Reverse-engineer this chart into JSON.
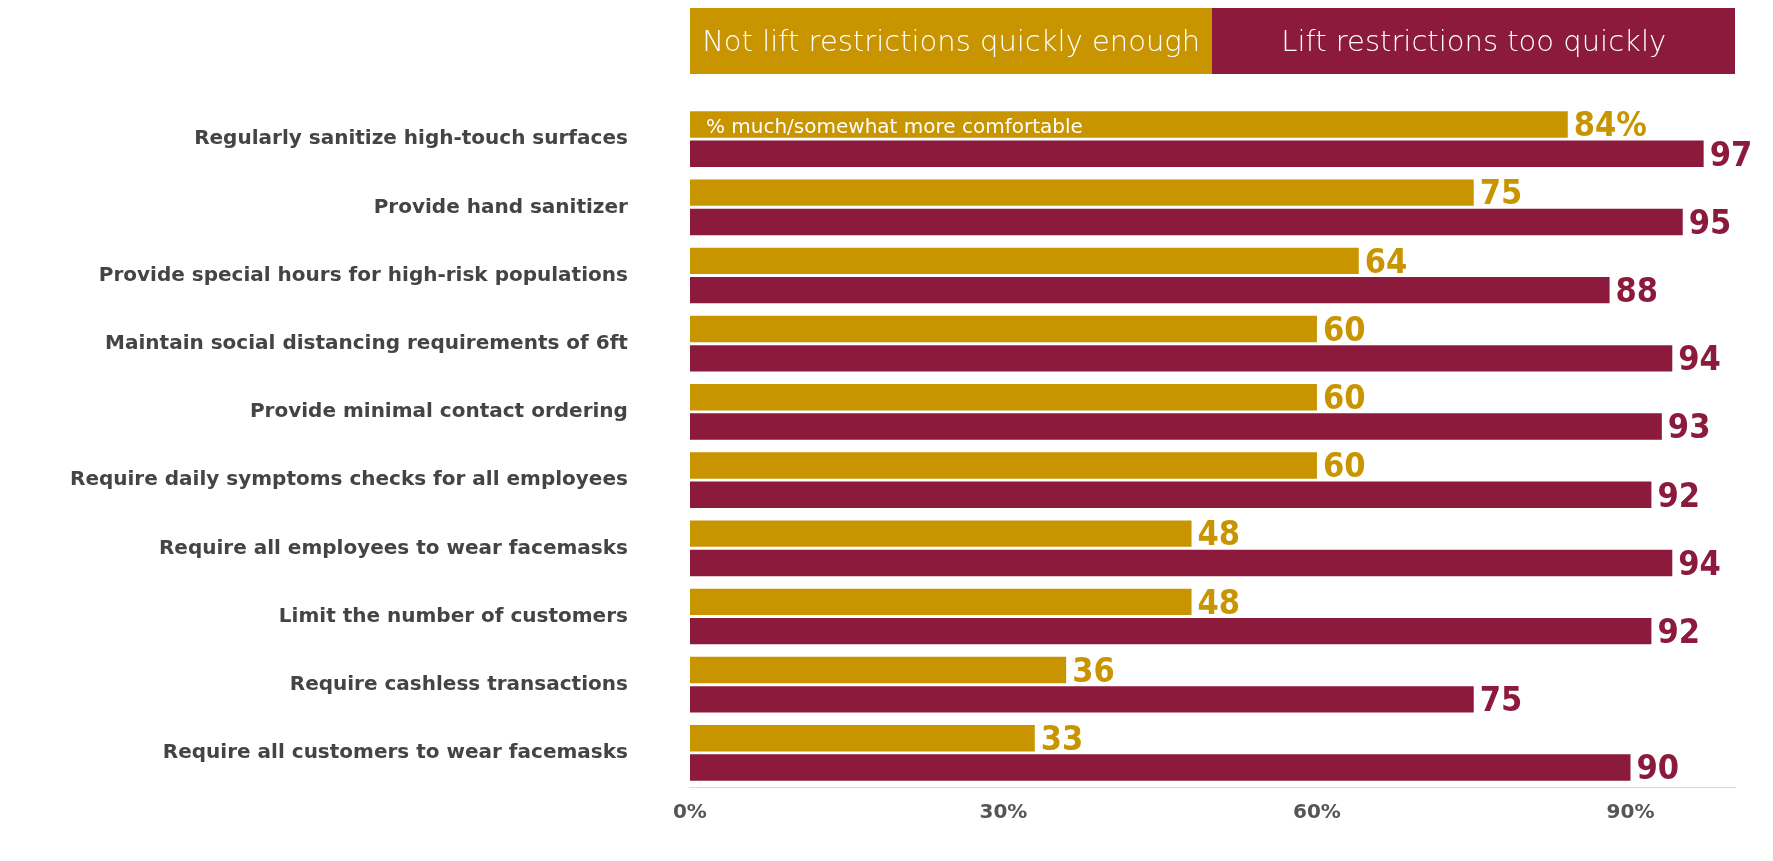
{
  "chart_data": {
    "type": "bar",
    "orientation": "horizontal",
    "legend": "top",
    "categories": [
      "Regularly sanitize high-touch surfaces",
      "Provide hand sanitizer",
      "Provide special hours for high-risk populations",
      "Maintain social distancing requirements of 6ft",
      "Provide minimal contact ordering",
      "Require daily symptoms checks for all employees",
      "Require all employees to wear facemasks",
      "Limit the number of customers",
      "Require cashless transactions",
      "Require all customers to wear facemasks"
    ],
    "series": [
      {
        "name": "Not lift restrictions quickly enough",
        "color": "#c89400",
        "values": [
          84,
          75,
          64,
          60,
          60,
          60,
          48,
          48,
          36,
          33
        ],
        "value_labels": [
          "84%",
          "75",
          "64",
          "60",
          "60",
          "60",
          "48",
          "48",
          "36",
          "33"
        ]
      },
      {
        "name": "Lift restrictions too quickly",
        "color": "#8b1a3d",
        "values": [
          97,
          95,
          88,
          94,
          93,
          92,
          94,
          92,
          75,
          90
        ],
        "value_labels": [
          "97",
          "95",
          "88",
          "94",
          "93",
          "92",
          "94",
          "92",
          "75",
          "90"
        ]
      }
    ],
    "xlim": [
      0,
      100
    ],
    "xticks": [
      {
        "value": 0,
        "label": "0%"
      },
      {
        "value": 30,
        "label": "30%"
      },
      {
        "value": 60,
        "label": "60%"
      },
      {
        "value": 90,
        "label": "90%"
      }
    ],
    "grid": false,
    "annotations": [
      "% much/somewhat more comfortable"
    ]
  }
}
